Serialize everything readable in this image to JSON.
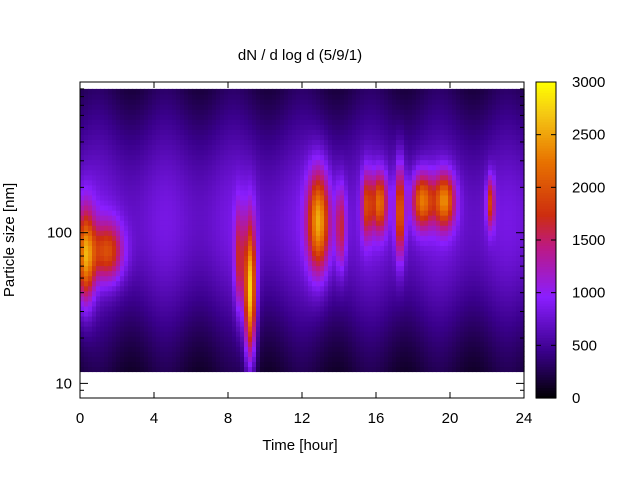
{
  "chart_data": {
    "type": "heatmap",
    "title": "dN / d log d (5/9/1)",
    "xlabel": "Time [hour]",
    "ylabel": "Particle size [nm]",
    "x_range": [
      0,
      24
    ],
    "x_ticks": [
      0,
      4,
      8,
      12,
      16,
      20,
      24
    ],
    "y_scale": "log",
    "y_range_nm": [
      8,
      1000
    ],
    "y_ticks": [
      10,
      100
    ],
    "colorbar": {
      "range": [
        0,
        3000
      ],
      "ticks": [
        0,
        500,
        1000,
        1500,
        2000,
        2500,
        3000
      ],
      "colormap": "black-purple-red-orange-yellow"
    },
    "data_extent": {
      "d_min_nm": 12,
      "d_max_nm": 900
    },
    "events": [
      {
        "time_hour": 0.3,
        "d_nm": 70,
        "peak": 2100,
        "sigma_t": 0.35,
        "sigma_logd": 0.22
      },
      {
        "time_hour": 1.5,
        "d_nm": 75,
        "peak": 1650,
        "sigma_t": 0.6,
        "sigma_logd": 0.14
      },
      {
        "time_hour": 8.6,
        "d_nm": 65,
        "peak": 1350,
        "sigma_t": 0.18,
        "sigma_logd": 0.25
      },
      {
        "time_hour": 9.2,
        "d_nm": 40,
        "peak": 2600,
        "sigma_t": 0.22,
        "sigma_logd": 0.32
      },
      {
        "time_hour": 12.9,
        "d_nm": 120,
        "peak": 2200,
        "sigma_t": 0.42,
        "sigma_logd": 0.24
      },
      {
        "time_hour": 14.1,
        "d_nm": 110,
        "peak": 1350,
        "sigma_t": 0.2,
        "sigma_logd": 0.2
      },
      {
        "time_hour": 15.5,
        "d_nm": 155,
        "peak": 1500,
        "sigma_t": 0.2,
        "sigma_logd": 0.16
      },
      {
        "time_hour": 16.2,
        "d_nm": 160,
        "peak": 1850,
        "sigma_t": 0.3,
        "sigma_logd": 0.14
      },
      {
        "time_hour": 17.3,
        "d_nm": 140,
        "peak": 1900,
        "sigma_t": 0.18,
        "sigma_logd": 0.22
      },
      {
        "time_hour": 18.5,
        "d_nm": 165,
        "peak": 1950,
        "sigma_t": 0.4,
        "sigma_logd": 0.13
      },
      {
        "time_hour": 19.7,
        "d_nm": 165,
        "peak": 2000,
        "sigma_t": 0.4,
        "sigma_logd": 0.13
      },
      {
        "time_hour": 22.2,
        "d_nm": 160,
        "peak": 1600,
        "sigma_t": 0.15,
        "sigma_logd": 0.12
      }
    ],
    "background": {
      "level": 700,
      "mode_d_nm": 120,
      "sigma_logd": 0.55
    }
  }
}
